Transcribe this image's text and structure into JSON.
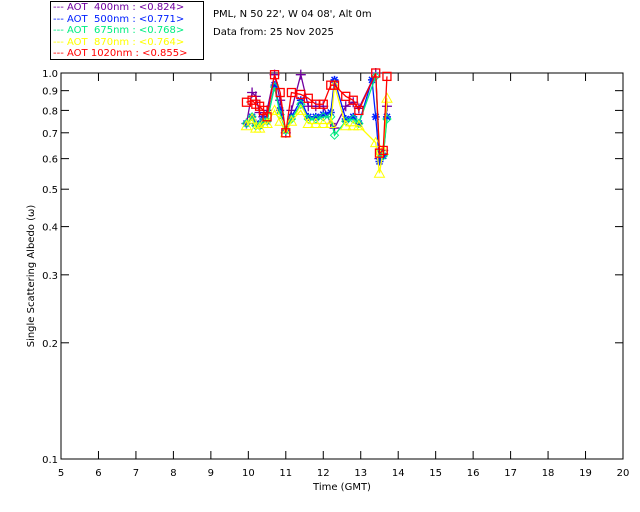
{
  "chart_data": {
    "type": "line",
    "title_lines": [
      "PML, N 50 22', W 04 08', Alt 0m",
      "Data from: 25 Nov 2025"
    ],
    "xlabel": "Time (GMT)",
    "ylabel": "Single Scattering Albedo (ω)",
    "xlim": [
      5,
      20
    ],
    "ylim": [
      0.1,
      1.0
    ],
    "yscale": "log",
    "xticks": [
      "5",
      "6",
      "7",
      "8",
      "9",
      "10",
      "11",
      "12",
      "13",
      "14",
      "15",
      "16",
      "17",
      "18",
      "19",
      "20"
    ],
    "yticks": [
      {
        "v": 0.1,
        "label": "0.1"
      },
      {
        "v": 0.2,
        "label": "0.2"
      },
      {
        "v": 0.3,
        "label": "0.3"
      },
      {
        "v": 0.4,
        "label": "0.4"
      },
      {
        "v": 0.5,
        "label": "0.5"
      },
      {
        "v": 0.6,
        "label": "0.6"
      },
      {
        "v": 0.7,
        "label": "0.7"
      },
      {
        "v": 0.8,
        "label": "0.8"
      },
      {
        "v": 0.9,
        "label": "0.9"
      },
      {
        "v": 1.0,
        "label": "1.0"
      }
    ],
    "legend_position": "top-left-outside",
    "series": [
      {
        "name": "AOT  400nm : <0.824>",
        "color": "#7000a0",
        "marker": "plus",
        "x": [
          9.95,
          10.1,
          10.2,
          10.3,
          10.4,
          10.5,
          10.7,
          10.85,
          11.0,
          11.15,
          11.4,
          11.6,
          11.8,
          12.0,
          12.2,
          12.3,
          12.6,
          12.8,
          12.95,
          13.4,
          13.5,
          13.6,
          13.7
        ],
        "y": [
          0.74,
          0.89,
          0.87,
          0.79,
          0.77,
          0.8,
          0.99,
          0.85,
          0.7,
          0.8,
          0.99,
          0.82,
          0.82,
          0.82,
          0.74,
          0.72,
          0.82,
          0.84,
          0.81,
          1.0,
          0.6,
          0.63,
          0.82
        ]
      },
      {
        "name": "AOT  500nm : <0.771>",
        "color": "#0020ff",
        "marker": "star",
        "x": [
          9.95,
          10.1,
          10.2,
          10.3,
          10.4,
          10.5,
          10.7,
          10.85,
          11.0,
          11.15,
          11.4,
          11.6,
          11.8,
          12.0,
          12.2,
          12.3,
          12.6,
          12.8,
          12.95,
          13.3,
          13.4,
          13.5,
          13.6,
          13.7
        ],
        "y": [
          0.74,
          0.77,
          0.74,
          0.73,
          0.76,
          0.75,
          0.93,
          0.8,
          0.71,
          0.77,
          0.85,
          0.77,
          0.77,
          0.78,
          0.79,
          0.96,
          0.76,
          0.77,
          0.74,
          0.96,
          0.77,
          0.59,
          0.61,
          0.77
        ]
      },
      {
        "name": "AOT  675nm : <0.768>",
        "color": "#00ee80",
        "marker": "diamond",
        "x": [
          9.95,
          10.1,
          10.2,
          10.3,
          10.4,
          10.5,
          10.7,
          10.85,
          11.0,
          11.15,
          11.4,
          11.6,
          11.8,
          12.0,
          12.2,
          12.3,
          12.6,
          12.8,
          12.95,
          13.4,
          13.5,
          13.6,
          13.7
        ],
        "y": [
          0.74,
          0.77,
          0.73,
          0.73,
          0.75,
          0.75,
          0.92,
          0.78,
          0.71,
          0.76,
          0.83,
          0.76,
          0.76,
          0.77,
          0.77,
          0.69,
          0.75,
          0.76,
          0.74,
          0.98,
          0.62,
          0.61,
          0.76
        ]
      },
      {
        "name": "AOT  870nm : <0.764>",
        "color": "#ffff00",
        "marker": "triangle",
        "x": [
          9.95,
          10.1,
          10.2,
          10.3,
          10.4,
          10.5,
          10.7,
          10.85,
          11.0,
          11.15,
          11.4,
          11.6,
          11.8,
          12.0,
          12.2,
          12.3,
          12.6,
          12.8,
          12.95,
          13.4,
          13.5,
          13.6,
          13.7
        ],
        "y": [
          0.73,
          0.76,
          0.72,
          0.72,
          0.74,
          0.74,
          0.8,
          0.75,
          0.7,
          0.75,
          0.8,
          0.74,
          0.74,
          0.74,
          0.74,
          0.93,
          0.73,
          0.73,
          0.73,
          0.66,
          0.55,
          0.63,
          0.86
        ]
      },
      {
        "name": "AOT 1020nm : <0.855>",
        "color": "#ff0000",
        "marker": "square",
        "x": [
          9.95,
          10.1,
          10.2,
          10.3,
          10.4,
          10.5,
          10.7,
          10.85,
          11.0,
          11.15,
          11.4,
          11.6,
          11.8,
          12.0,
          12.2,
          12.3,
          12.6,
          12.8,
          12.95,
          13.4,
          13.5,
          13.6,
          13.7
        ],
        "y": [
          0.84,
          0.85,
          0.83,
          0.82,
          0.8,
          0.77,
          0.99,
          0.89,
          0.7,
          0.89,
          0.88,
          0.86,
          0.83,
          0.83,
          0.93,
          0.93,
          0.87,
          0.85,
          0.8,
          1.0,
          0.62,
          0.63,
          0.98
        ]
      }
    ]
  }
}
